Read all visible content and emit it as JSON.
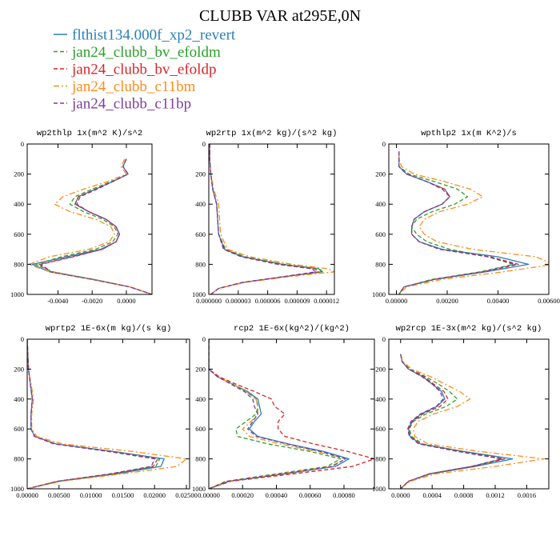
{
  "title": "CLUBB VAR at295E,0N",
  "legend": [
    {
      "label": "flthist134.000f_xp2_revert",
      "color": "#2a7fb8",
      "dash": "solid"
    },
    {
      "label": "jan24_clubb_bv_efoldm",
      "color": "#2ca02c",
      "dash": "dash"
    },
    {
      "label": "jan24_clubb_bv_efoldp",
      "color": "#d62728",
      "dash": "dash"
    },
    {
      "label": "jan24_clubb_c11bm",
      "color": "#ff8c1a",
      "dash": "dashdot"
    },
    {
      "label": "jan24_clubb_c11bp",
      "color": "#7b3f9e",
      "dash": "dash"
    }
  ],
  "chart_data": [
    {
      "type": "line",
      "title": "wp2thlp  1x(m^2 K)/s^2",
      "xlim": [
        -0.0058,
        0.0015
      ],
      "ylim": [
        0,
        1000
      ],
      "x_ticks": [
        -0.004,
        -0.002,
        0.0
      ],
      "x_tick_labels": [
        "-0.0040",
        "-0.0020",
        "0.0000"
      ],
      "y_ticks": [
        0,
        200,
        400,
        600,
        800,
        1000
      ],
      "y_tick_labels": [
        "0",
        "200",
        "400",
        "600",
        "800",
        "1000"
      ],
      "y": [
        100,
        150,
        200,
        250,
        300,
        350,
        400,
        450,
        500,
        550,
        600,
        650,
        700,
        750,
        800,
        850,
        900,
        950,
        1000
      ],
      "series": [
        {
          "values": [
            0.0,
            -0.0002,
            0.0001,
            -0.0008,
            -0.0018,
            -0.0028,
            -0.003,
            -0.0022,
            -0.0012,
            -0.0006,
            -0.0004,
            -0.0006,
            -0.0015,
            -0.0035,
            -0.0055,
            -0.0045,
            -0.002,
            0.0002,
            0.0015
          ]
        },
        {
          "values": [
            0.0,
            -0.0002,
            0.0001,
            -0.0009,
            -0.002,
            -0.003,
            -0.0033,
            -0.0025,
            -0.0014,
            -0.0007,
            -0.0005,
            -0.0008,
            -0.0018,
            -0.0038,
            -0.0053,
            -0.0043,
            -0.0019,
            0.0002,
            0.0015
          ]
        },
        {
          "values": [
            0.0,
            -0.0002,
            0.0001,
            -0.0008,
            -0.0018,
            -0.0028,
            -0.003,
            -0.0022,
            -0.0012,
            -0.0006,
            -0.0004,
            -0.0006,
            -0.0014,
            -0.0032,
            -0.0051,
            -0.0044,
            -0.002,
            0.0002,
            0.0015
          ]
        },
        {
          "values": [
            -0.0001,
            -0.0003,
            0.0,
            -0.0011,
            -0.0025,
            -0.0037,
            -0.0042,
            -0.0033,
            -0.0018,
            -0.0009,
            -0.0007,
            -0.001,
            -0.0022,
            -0.0045,
            -0.0057,
            -0.0045,
            -0.0019,
            0.0002,
            0.0015
          ]
        },
        {
          "values": [
            0.0,
            -0.0002,
            0.0001,
            -0.0008,
            -0.0017,
            -0.0027,
            -0.0029,
            -0.0022,
            -0.0012,
            -0.0006,
            -0.0004,
            -0.0006,
            -0.0014,
            -0.0031,
            -0.005,
            -0.0044,
            -0.002,
            0.0002,
            0.0015
          ]
        }
      ]
    },
    {
      "type": "line",
      "title": "wp2rtp  1x(m^2 kg)/(s^2 kg)",
      "xlim": [
        0.0,
        1.28e-05
      ],
      "ylim": [
        0,
        1000
      ],
      "x_ticks": [
        0.0,
        3e-06,
        6e-06,
        9e-06,
        1.2e-05
      ],
      "x_tick_labels": [
        "0.000000",
        "0.000003",
        "0.000006",
        "0.000009",
        "0.000012"
      ],
      "y_ticks": [
        0,
        200,
        400,
        600,
        800,
        1000
      ],
      "y_tick_labels": [
        "0",
        "200",
        "400",
        "600",
        "800",
        "1000"
      ],
      "y": [
        0,
        100,
        200,
        300,
        400,
        500,
        600,
        700,
        750,
        800,
        830,
        850,
        880,
        920,
        960,
        1000
      ],
      "series": [
        {
          "values": [
            1e-07,
            1e-07,
            2e-07,
            4e-07,
            8e-07,
            9e-07,
            1e-06,
            1.6e-06,
            3.5e-06,
            7.5e-06,
            1.12e-05,
            1.15e-05,
            8e-06,
            3.5e-06,
            1e-06,
            2e-07
          ]
        },
        {
          "values": [
            1e-07,
            1e-07,
            2e-07,
            4e-07,
            8e-07,
            9e-07,
            1e-06,
            1.7e-06,
            3.7e-06,
            7.7e-06,
            1.13e-05,
            1.16e-05,
            8e-06,
            3.5e-06,
            1e-06,
            2e-07
          ]
        },
        {
          "values": [
            1e-07,
            1e-07,
            2e-07,
            4e-07,
            8e-07,
            9e-07,
            1e-06,
            1.6e-06,
            3.4e-06,
            7.2e-06,
            1.08e-05,
            1.12e-05,
            7.9e-06,
            3.5e-06,
            1e-06,
            2e-07
          ]
        },
        {
          "values": [
            1e-07,
            1e-07,
            2e-07,
            5e-07,
            1e-06,
            1.1e-06,
            1.2e-06,
            1.9e-06,
            4.2e-06,
            8.5e-06,
            1.22e-05,
            1.28e-05,
            8.5e-06,
            3.7e-06,
            1e-06,
            2e-07
          ]
        },
        {
          "values": [
            1e-07,
            1e-07,
            2e-07,
            4e-07,
            8e-07,
            9e-07,
            1e-06,
            1.5e-06,
            3.3e-06,
            7e-06,
            1.05e-05,
            1.09e-05,
            7.8e-06,
            3.4e-06,
            1e-06,
            2e-07
          ]
        }
      ]
    },
    {
      "type": "line",
      "title": "wpthlp2  1x(m K^2)/s",
      "xlim": [
        -0.0003,
        0.006
      ],
      "ylim": [
        0,
        1000
      ],
      "x_ticks": [
        0.0,
        0.002,
        0.004,
        0.006
      ],
      "x_tick_labels": [
        "0.00000",
        "0.00200",
        "0.00400",
        "0.00600"
      ],
      "y_ticks": [
        0,
        200,
        400,
        600,
        800,
        1000
      ],
      "y_tick_labels": [
        "0",
        "200",
        "400",
        "600",
        "800",
        "1000"
      ],
      "y": [
        50,
        100,
        150,
        200,
        250,
        300,
        350,
        400,
        450,
        500,
        550,
        600,
        650,
        700,
        750,
        800,
        850,
        900,
        950,
        1000
      ],
      "series": [
        {
          "values": [
            0.0001,
            0.0001,
            0.0001,
            0.0004,
            0.0012,
            0.0019,
            0.0021,
            0.0018,
            0.0011,
            0.0007,
            0.0006,
            0.0006,
            0.0009,
            0.0018,
            0.004,
            0.0052,
            0.0035,
            0.0015,
            0.0003,
            0.0001
          ]
        },
        {
          "values": [
            0.0001,
            0.0001,
            0.0001,
            0.0005,
            0.0015,
            0.0024,
            0.0028,
            0.0023,
            0.0014,
            0.0008,
            0.0006,
            0.0008,
            0.0012,
            0.0021,
            0.0036,
            0.0046,
            0.0033,
            0.0014,
            0.0003,
            0.0001
          ]
        },
        {
          "values": [
            0.0001,
            0.0001,
            0.0001,
            0.0004,
            0.0012,
            0.0019,
            0.0021,
            0.0018,
            0.0011,
            0.0007,
            0.0006,
            0.0006,
            0.0009,
            0.0017,
            0.0037,
            0.0048,
            0.0034,
            0.0015,
            0.0003,
            0.0001
          ]
        },
        {
          "values": [
            0.0001,
            0.0001,
            0.0002,
            0.0007,
            0.0019,
            0.0029,
            0.0034,
            0.0028,
            0.0017,
            0.0011,
            0.0009,
            0.0011,
            0.0016,
            0.003,
            0.0055,
            0.0062,
            0.0042,
            0.0018,
            0.0004,
            0.0001
          ]
        },
        {
          "values": [
            0.0001,
            0.0001,
            0.0001,
            0.0004,
            0.0012,
            0.0018,
            0.0021,
            0.0018,
            0.0011,
            0.0007,
            0.0006,
            0.0006,
            0.0009,
            0.0017,
            0.0036,
            0.0047,
            0.0034,
            0.0015,
            0.0003,
            0.0001
          ]
        }
      ]
    },
    {
      "type": "line",
      "title": "wprtp2  1E-6x(m kg)/(s kg)",
      "xlim": [
        0.0,
        0.0255
      ],
      "ylim": [
        0,
        1000
      ],
      "x_ticks": [
        0.0,
        0.005,
        0.01,
        0.015,
        0.02,
        0.025
      ],
      "x_tick_labels": [
        "0.00000",
        "0.00500",
        "0.01000",
        "0.01500",
        "0.02000",
        "0.02500"
      ],
      "y_ticks": [
        0,
        200,
        400,
        600,
        800,
        1000
      ],
      "y_tick_labels": [
        "0",
        "200",
        "400",
        "600",
        "800",
        "1000"
      ],
      "y": [
        0,
        200,
        300,
        400,
        500,
        600,
        650,
        700,
        750,
        800,
        850,
        900,
        950,
        1000
      ],
      "series": [
        {
          "values": [
            0.0,
            0.0002,
            0.0005,
            0.0008,
            0.0006,
            0.0006,
            0.0012,
            0.0045,
            0.0135,
            0.0215,
            0.021,
            0.014,
            0.005,
            0.0
          ]
        },
        {
          "values": [
            0.0,
            0.0002,
            0.0005,
            0.0008,
            0.0006,
            0.0006,
            0.0012,
            0.0045,
            0.0132,
            0.0208,
            0.0202,
            0.0135,
            0.0048,
            0.0
          ]
        },
        {
          "values": [
            0.0,
            0.0002,
            0.0005,
            0.0008,
            0.0006,
            0.0006,
            0.0012,
            0.0044,
            0.013,
            0.0205,
            0.0198,
            0.0132,
            0.0048,
            0.0
          ]
        },
        {
          "values": [
            0.0,
            0.0002,
            0.0006,
            0.001,
            0.0007,
            0.0007,
            0.0015,
            0.0055,
            0.0165,
            0.025,
            0.0235,
            0.015,
            0.0053,
            0.0
          ]
        },
        {
          "values": [
            0.0,
            0.0002,
            0.0005,
            0.0008,
            0.0006,
            0.0006,
            0.0011,
            0.0042,
            0.0127,
            0.02,
            0.0195,
            0.013,
            0.0047,
            0.0
          ]
        }
      ]
    },
    {
      "type": "line",
      "title": "rcp2  1E-6x(kg^2)/(kg^2)",
      "xlim": [
        0.0,
        0.00098
      ],
      "ylim": [
        0,
        1000
      ],
      "x_ticks": [
        0.0,
        0.0002,
        0.0004,
        0.0006,
        0.0008
      ],
      "x_tick_labels": [
        "0.00000",
        "0.00020",
        "0.00040",
        "0.00060",
        "0.00080"
      ],
      "y_ticks": [
        0,
        200,
        400,
        600,
        800,
        1000
      ],
      "y_tick_labels": [
        "0",
        "200",
        "400",
        "600",
        "800",
        "1000"
      ],
      "y": [
        0,
        200,
        250,
        300,
        350,
        400,
        450,
        500,
        550,
        600,
        650,
        700,
        750,
        800,
        850,
        900,
        950,
        1000
      ],
      "series": [
        {
          "values": [
            0.0,
            0.0,
            5e-05,
            0.00014,
            0.00023,
            0.00029,
            0.0003,
            0.00031,
            0.00027,
            0.00024,
            0.00029,
            0.00047,
            0.00068,
            0.00083,
            0.00075,
            0.00045,
            0.00012,
            0.0
          ]
        },
        {
          "values": [
            0.0,
            0.0,
            5e-05,
            0.00014,
            0.00022,
            0.00028,
            0.00029,
            0.00028,
            0.00022,
            0.00016,
            0.00017,
            0.00035,
            0.0006,
            0.00078,
            0.0007,
            0.0004,
            0.0001,
            0.0
          ]
        },
        {
          "values": [
            0.0,
            0.0,
            6e-05,
            0.00016,
            0.00027,
            0.00037,
            0.00039,
            0.00045,
            0.00041,
            0.00041,
            0.00045,
            0.00062,
            0.00082,
            0.00098,
            0.00085,
            0.0005,
            0.00013,
            0.0
          ]
        },
        {
          "values": [
            0.0,
            0.0,
            5e-05,
            0.00014,
            0.00022,
            0.00028,
            0.00029,
            0.00029,
            0.00025,
            0.0002,
            0.00024,
            0.00042,
            0.00064,
            0.00081,
            0.00072,
            0.00043,
            0.00011,
            0.0
          ]
        },
        {
          "values": [
            0.0,
            0.0,
            5e-05,
            0.00013,
            0.00021,
            0.00026,
            0.00027,
            0.00029,
            0.00026,
            0.00023,
            0.00028,
            0.00046,
            0.00066,
            0.00081,
            0.00073,
            0.00044,
            0.00011,
            0.0
          ]
        }
      ]
    },
    {
      "type": "line",
      "title": "wp2rcp  1E-3x(m^2 kg)/(s^2 kg)",
      "xlim": [
        -0.00015,
        0.00188
      ],
      "ylim": [
        0,
        1000
      ],
      "x_ticks": [
        0.0,
        0.0004,
        0.0008,
        0.0012,
        0.0016
      ],
      "x_tick_labels": [
        "0.0000",
        "0.0004",
        "0.0008",
        "0.0012",
        "0.0016"
      ],
      "y_ticks": [
        0,
        200,
        400,
        600,
        800,
        1000
      ],
      "y_tick_labels": [
        "0",
        "200",
        "400",
        "600",
        "800",
        "1000"
      ],
      "y": [
        100,
        150,
        200,
        250,
        300,
        350,
        400,
        450,
        500,
        550,
        600,
        650,
        700,
        750,
        800,
        850,
        900,
        950,
        1000
      ],
      "series": [
        {
          "values": [
            0.0,
            2e-05,
            0.0001,
            0.00028,
            0.0004,
            0.00052,
            0.00056,
            0.00046,
            0.00026,
            0.00014,
            0.0001,
            0.00012,
            0.00025,
            0.0008,
            0.00142,
            0.00095,
            0.00038,
            0.0001,
            0.0
          ]
        },
        {
          "values": [
            0.0,
            2e-05,
            0.00012,
            0.00032,
            0.00048,
            0.00062,
            0.00072,
            0.00058,
            0.00032,
            0.00016,
            0.00011,
            0.00014,
            0.00028,
            0.00078,
            0.0013,
            0.0009,
            0.00036,
            0.0001,
            0.0
          ]
        },
        {
          "values": [
            0.0,
            2e-05,
            0.0001,
            0.0003,
            0.00042,
            0.00055,
            0.0006,
            0.0005,
            0.00028,
            0.00015,
            0.0001,
            0.00012,
            0.00025,
            0.00075,
            0.00132,
            0.00092,
            0.00037,
            0.0001,
            0.0
          ]
        },
        {
          "values": [
            0.0,
            3e-05,
            0.00014,
            0.00038,
            0.00056,
            0.00075,
            0.00088,
            0.00072,
            0.00042,
            0.00022,
            0.00016,
            0.00018,
            0.00035,
            0.001,
            0.00182,
            0.0012,
            0.00045,
            0.00012,
            0.0
          ]
        },
        {
          "values": [
            0.0,
            2e-05,
            0.0001,
            0.00027,
            0.0004,
            0.0005,
            0.00054,
            0.00045,
            0.00025,
            0.00013,
            9e-05,
            0.00011,
            0.00023,
            0.00072,
            0.00128,
            0.0009,
            0.00036,
            0.0001,
            0.0
          ]
        }
      ]
    }
  ]
}
